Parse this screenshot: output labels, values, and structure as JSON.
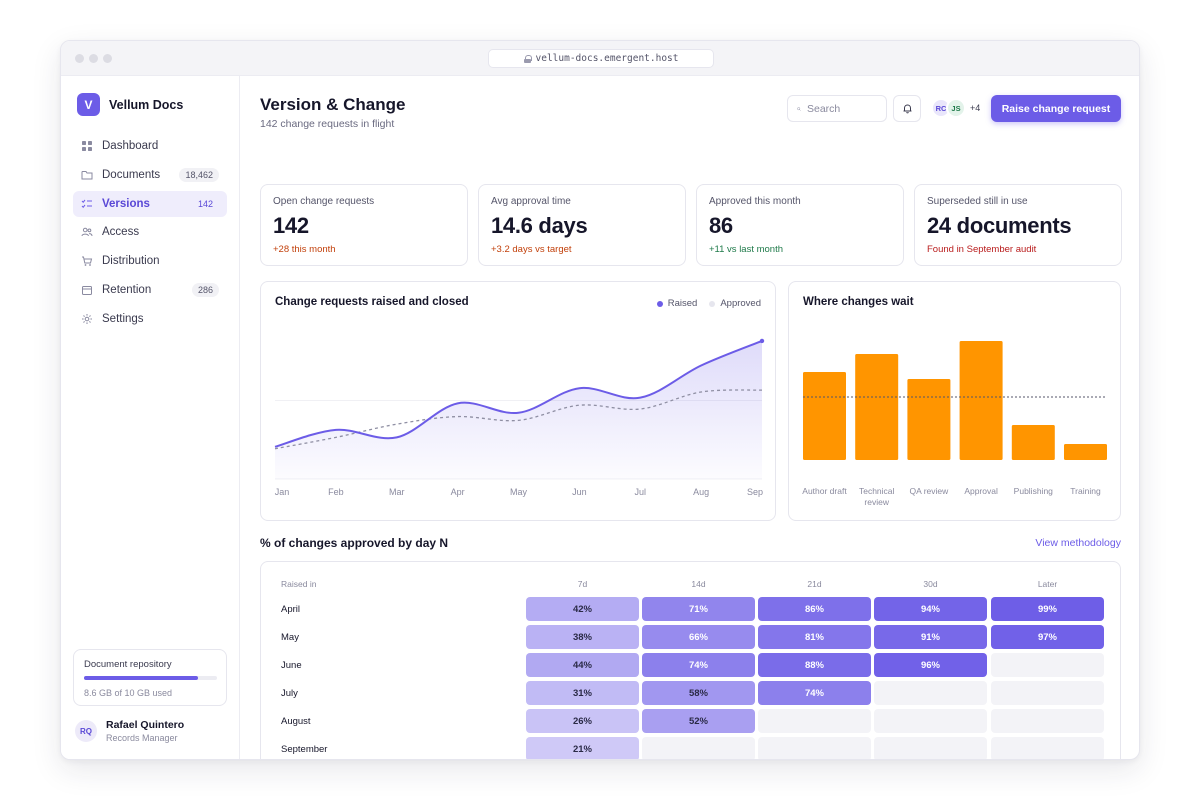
{
  "browser": {
    "url": "vellum-docs.emergent.host"
  },
  "brand": {
    "logo_letter": "V",
    "name": "Vellum Docs",
    "accent": "#6c5ce7"
  },
  "sidebar": {
    "items": [
      {
        "label": "Dashboard",
        "icon": "grid-icon",
        "badge": ""
      },
      {
        "label": "Documents",
        "icon": "folder-icon",
        "badge": "18,462"
      },
      {
        "label": "Versions",
        "icon": "versions-icon",
        "badge": "142",
        "active": true
      },
      {
        "label": "Access",
        "icon": "users-icon",
        "badge": ""
      },
      {
        "label": "Distribution",
        "icon": "cart-icon",
        "badge": ""
      },
      {
        "label": "Retention",
        "icon": "calendar-icon",
        "badge": "286"
      },
      {
        "label": "Settings",
        "icon": "gear-icon",
        "badge": ""
      }
    ],
    "repository": {
      "title": "Document repository",
      "usage_text": "8.6 GB of 10 GB used",
      "used_fraction": 0.86
    },
    "user": {
      "initials": "RQ",
      "name": "Rafael Quintero",
      "role": "Records Manager"
    }
  },
  "header": {
    "title": "Version & Change",
    "subtitle": "142 change requests in flight",
    "search_placeholder": "Search",
    "avatars": [
      {
        "initials": "RC",
        "bg": "#e9e6fb",
        "fg": "#5a48d6"
      },
      {
        "initials": "JS",
        "bg": "#e3f3ea",
        "fg": "#1f7a4a"
      }
    ],
    "avatars_more": "+4",
    "primary_action": "Raise change request"
  },
  "kpis": [
    {
      "label": "Open change requests",
      "value": "142",
      "delta": "+28 this month",
      "delta_color": "#c2410c"
    },
    {
      "label": "Avg approval time",
      "value": "14.6 days",
      "delta": "+3.2 days vs target",
      "delta_color": "#c2410c"
    },
    {
      "label": "Approved this month",
      "value": "86",
      "delta": "+11 vs last month",
      "delta_color": "#1f7a4a"
    },
    {
      "label": "Superseded still in use",
      "value": "24 documents",
      "delta": "Found in September audit",
      "delta_color": "#b91c1c"
    }
  ],
  "line_chart": {
    "title": "Change requests raised and closed",
    "legend": [
      {
        "name": "Raised",
        "color": "#6c5ce7"
      },
      {
        "name": "Approved",
        "color": "#e6e6ee"
      }
    ]
  },
  "bar_chart": {
    "title": "Where changes wait",
    "bar_color": "#ff9500",
    "categories": [
      {
        "line1": "Author draft",
        "line2": ""
      },
      {
        "line1": "Technical",
        "line2": "review"
      },
      {
        "line1": "QA review",
        "line2": ""
      },
      {
        "line1": "Approval",
        "line2": ""
      },
      {
        "line1": "Publishing",
        "line2": ""
      },
      {
        "line1": "Training",
        "line2": ""
      }
    ]
  },
  "chart_data": [
    {
      "type": "line",
      "title": "Change requests raised and closed",
      "x": [
        "Jan",
        "Feb",
        "Mar",
        "Apr",
        "May",
        "Jun",
        "Jul",
        "Aug",
        "Sep"
      ],
      "series": [
        {
          "name": "Raised",
          "values": [
            17,
            26,
            22,
            40,
            35,
            48,
            43,
            60,
            73
          ],
          "style": "solid-area"
        },
        {
          "name": "Approved",
          "values": [
            16,
            22,
            29,
            33,
            31,
            39,
            37,
            46,
            47
          ],
          "style": "dashed"
        }
      ],
      "ylim": [
        0,
        83
      ],
      "grid": "horizontal",
      "legend_position": "top-right"
    },
    {
      "type": "bar",
      "title": "Where changes wait",
      "categories": [
        "Author draft",
        "Technical review",
        "QA review",
        "Approval",
        "Publishing",
        "Training"
      ],
      "values": [
        88,
        106,
        81,
        119,
        35,
        16
      ],
      "reference_line": 63,
      "ylim": [
        0,
        140
      ]
    },
    {
      "type": "heatmap",
      "title": "% of changes approved by day N",
      "row_header": "Raised in",
      "columns": [
        "7d",
        "14d",
        "21d",
        "30d",
        "Later"
      ],
      "rows": [
        {
          "label": "April",
          "values": [
            42,
            71,
            86,
            94,
            99
          ]
        },
        {
          "label": "May",
          "values": [
            38,
            66,
            81,
            91,
            97
          ]
        },
        {
          "label": "June",
          "values": [
            44,
            74,
            88,
            96,
            null
          ]
        },
        {
          "label": "July",
          "values": [
            31,
            58,
            74,
            null,
            null
          ]
        },
        {
          "label": "August",
          "values": [
            26,
            52,
            null,
            null,
            null
          ]
        },
        {
          "label": "September",
          "values": [
            21,
            null,
            null,
            null,
            null
          ]
        }
      ]
    }
  ],
  "cohort": {
    "title": "% of changes approved by day N",
    "link": "View methodology",
    "row_header": "Raised in",
    "columns": [
      "7d",
      "14d",
      "21d",
      "30d",
      "Later"
    ],
    "rows": [
      {
        "label": "April",
        "cells": [
          "42%",
          "71%",
          "86%",
          "94%",
          "99%"
        ]
      },
      {
        "label": "May",
        "cells": [
          "38%",
          "66%",
          "81%",
          "91%",
          "97%"
        ]
      },
      {
        "label": "June",
        "cells": [
          "44%",
          "74%",
          "88%",
          "96%",
          ""
        ]
      },
      {
        "label": "July",
        "cells": [
          "31%",
          "58%",
          "74%",
          "",
          ""
        ]
      },
      {
        "label": "August",
        "cells": [
          "26%",
          "52%",
          "",
          "",
          ""
        ]
      },
      {
        "label": "September",
        "cells": [
          "21%",
          "",
          "",
          "",
          ""
        ]
      }
    ]
  }
}
